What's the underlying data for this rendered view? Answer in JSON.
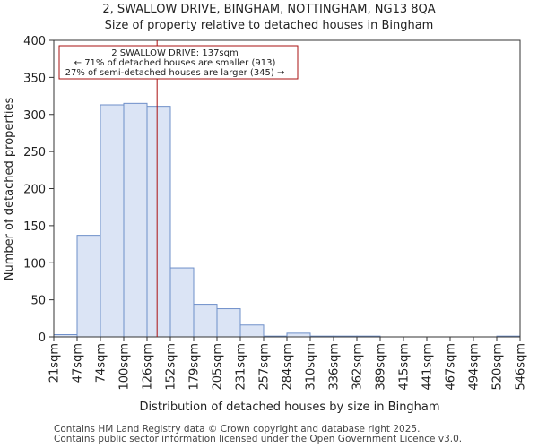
{
  "chart_data": {
    "type": "bar",
    "title": "2, SWALLOW DRIVE, BINGHAM, NOTTINGHAM, NG13 8QA",
    "subtitle": "Size of property relative to detached houses in Bingham",
    "xlabel": "Distribution of detached houses by size in Bingham",
    "ylabel": "Number of detached properties",
    "x_tick_labels": [
      "21sqm",
      "47sqm",
      "74sqm",
      "100sqm",
      "126sqm",
      "152sqm",
      "179sqm",
      "205sqm",
      "231sqm",
      "257sqm",
      "284sqm",
      "310sqm",
      "336sqm",
      "362sqm",
      "389sqm",
      "415sqm",
      "441sqm",
      "467sqm",
      "494sqm",
      "520sqm",
      "546sqm"
    ],
    "values": [
      3,
      137,
      313,
      315,
      311,
      93,
      44,
      38,
      16,
      1,
      5,
      1,
      1,
      1,
      0,
      0,
      0,
      0,
      0,
      1
    ],
    "ylim": [
      0,
      400
    ],
    "y_ticks": [
      0,
      50,
      100,
      150,
      200,
      250,
      300,
      350,
      400
    ],
    "grid": false,
    "bar_color": "#dbe4f5",
    "bar_edge_color": "#6e8fc9",
    "marker": {
      "value": 137,
      "bin_position": 4.43,
      "color": "#aa1111",
      "label": "2 SWALLOW DRIVE: 137sqm",
      "smaller_text": "← 71% of detached houses are smaller (913)",
      "larger_text": "27% of semi-detached houses are larger (345) →"
    }
  },
  "footer": {
    "line1": "Contains HM Land Registry data © Crown copyright and database right 2025.",
    "line2": "Contains public sector information licensed under the Open Government Licence v3.0."
  }
}
